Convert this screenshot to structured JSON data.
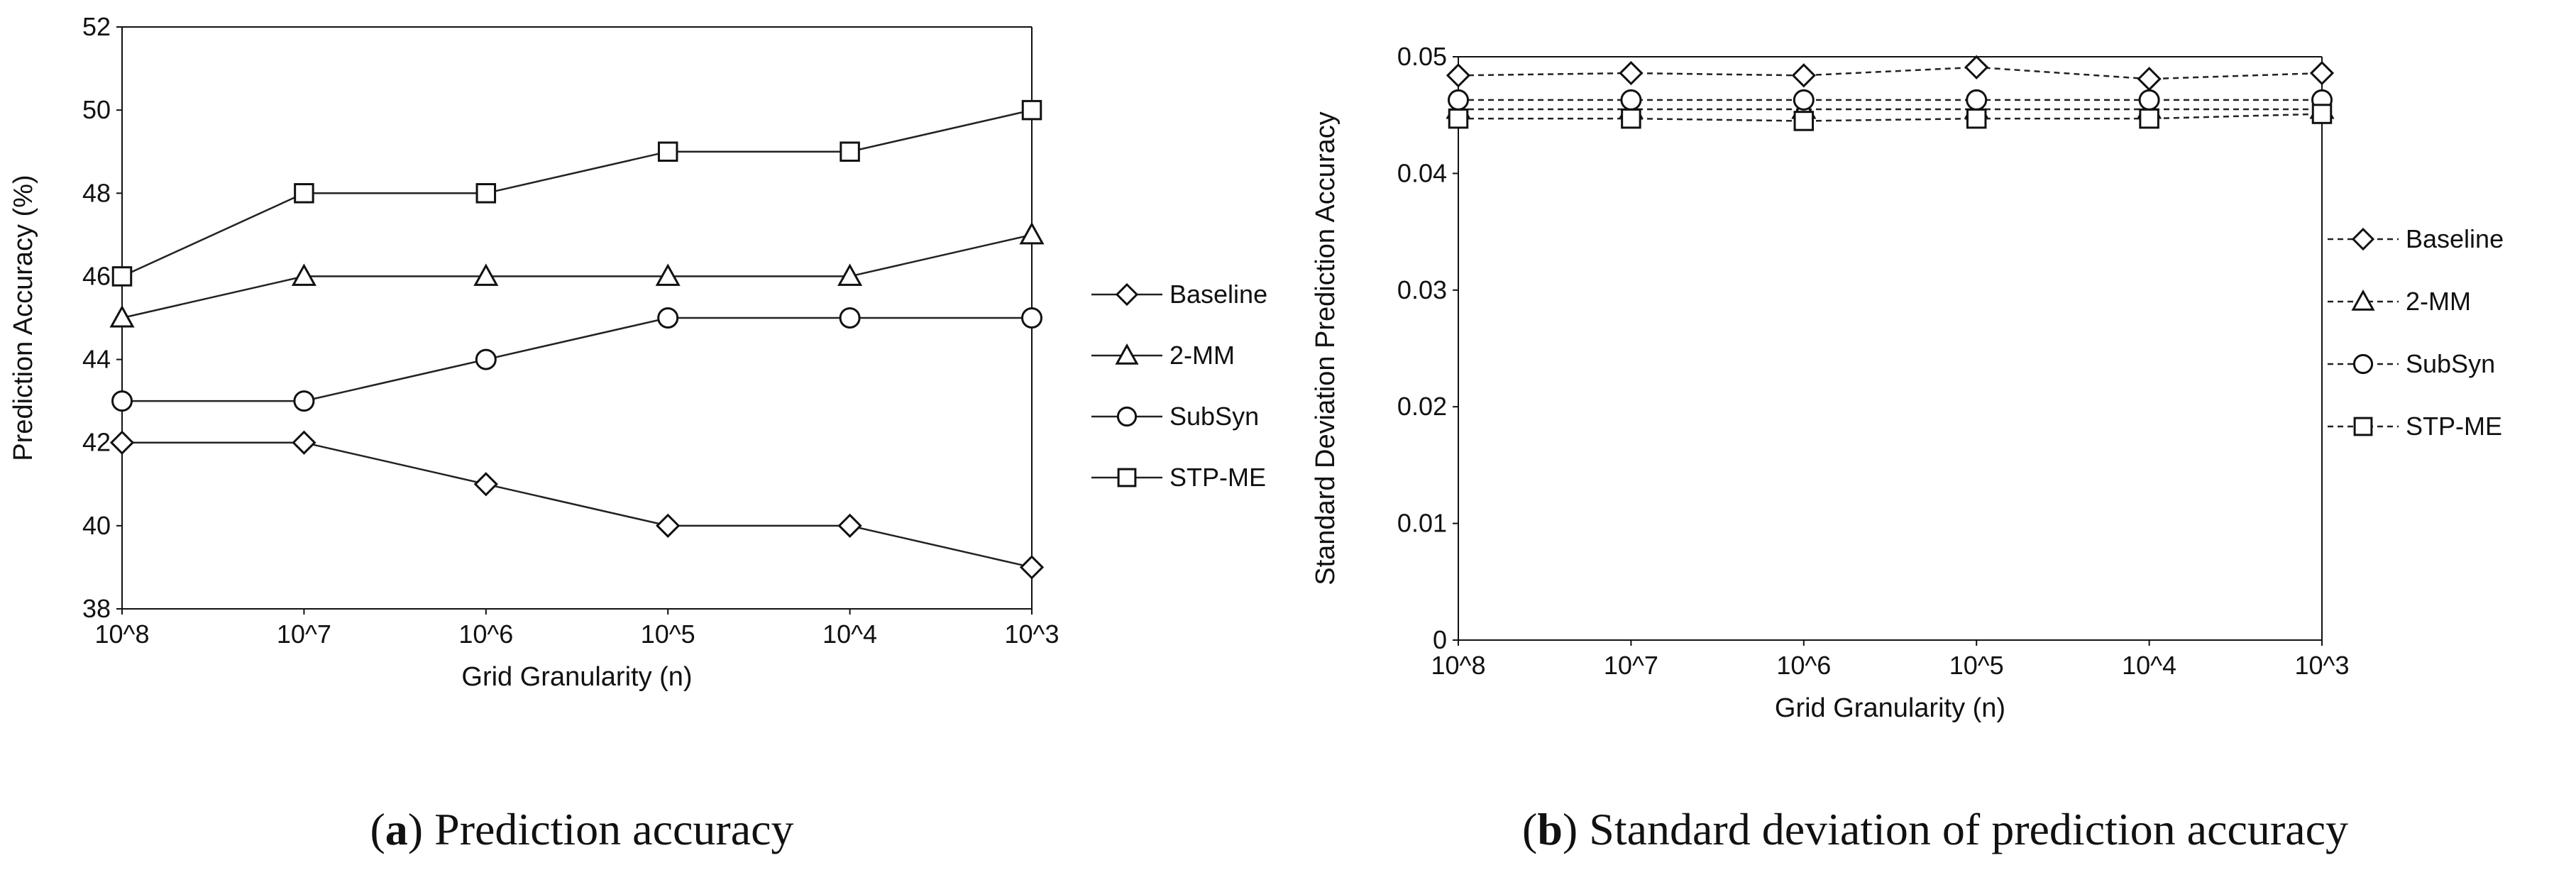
{
  "chart_data": [
    {
      "type": "line",
      "title": "",
      "categories": [
        "10^8",
        "10^7",
        "10^6",
        "10^5",
        "10^4",
        "10^3"
      ],
      "xlabel": "Grid  Granularity (n)",
      "ylabel": "Prediction  Accuracy (%)",
      "ylim": [
        38,
        52
      ],
      "yticks": [
        "38",
        "40",
        "42",
        "44",
        "46",
        "48",
        "50",
        "52"
      ],
      "grid": false,
      "legend_position": "right",
      "line_style": "solid",
      "series": [
        {
          "name": "Baseline",
          "marker": "diamond",
          "values": [
            42,
            42,
            41,
            40,
            40,
            39
          ]
        },
        {
          "name": "2-MM",
          "marker": "triangle",
          "values": [
            45,
            46,
            46,
            46,
            46,
            47
          ]
        },
        {
          "name": "SubSyn",
          "marker": "circle",
          "values": [
            43,
            43,
            44,
            45,
            45,
            45
          ]
        },
        {
          "name": "STP-ME",
          "marker": "square",
          "values": [
            46,
            48,
            48,
            49,
            49,
            50
          ]
        }
      ],
      "caption_letter": "a",
      "caption_text": "Prediction accuracy"
    },
    {
      "type": "line",
      "title": "",
      "categories": [
        "10^8",
        "10^7",
        "10^6",
        "10^5",
        "10^4",
        "10^3"
      ],
      "xlabel": "Grid  Granularity (n)",
      "ylabel": "Standard Deviation  Prediction  Accuracy",
      "ylim": [
        0,
        0.05
      ],
      "yticks": [
        "0",
        "0.01",
        "0.02",
        "0.03",
        "0.04",
        "0.05"
      ],
      "grid": false,
      "legend_position": "right",
      "line_style": "dashed",
      "series": [
        {
          "name": "Baseline",
          "marker": "diamond",
          "values": [
            0.0484,
            0.0486,
            0.0484,
            0.0491,
            0.0481,
            0.0486
          ]
        },
        {
          "name": "2-MM",
          "marker": "triangle",
          "values": [
            0.0455,
            0.0455,
            0.0455,
            0.0455,
            0.0455,
            0.0455
          ]
        },
        {
          "name": "SubSyn",
          "marker": "circle",
          "values": [
            0.0463,
            0.0463,
            0.0463,
            0.0463,
            0.0463,
            0.0463
          ]
        },
        {
          "name": "STP-ME",
          "marker": "square",
          "values": [
            0.0447,
            0.0447,
            0.0445,
            0.0447,
            0.0447,
            0.0451
          ]
        }
      ],
      "caption_letter": "b",
      "caption_text": "Standard deviation of prediction accuracy"
    }
  ]
}
